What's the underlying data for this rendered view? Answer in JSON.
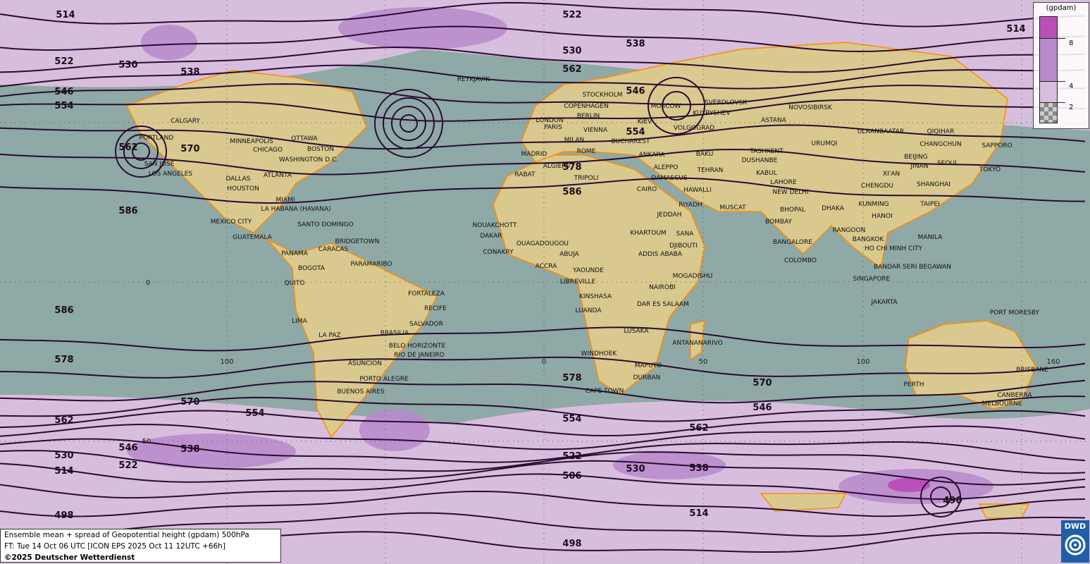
{
  "map": {
    "title": "Ensemble mean + spread of Geopotential height (gpdam) 500hPa",
    "forecast_line": "FT: Tue 14 Oct 06 UTC [ICON EPS 2025 Oct 11 12UTC +66h]",
    "copyright": "©2025 Deutscher Wetterdienst",
    "logo_text": "DWD",
    "colors": {
      "ocean": "#8fa9a6",
      "land": "#d9c98f",
      "spread_low": "#d8bedd",
      "spread_mid": "#b98acb",
      "spread_high": "#b950b8",
      "contour": "#2a0a33",
      "coast": "#ff8c00"
    },
    "legend": {
      "unit": "(gpdam)",
      "levels": [
        "8",
        "4",
        "2"
      ],
      "swatches": [
        "#b950b8",
        "#b98acb",
        "#d8bedd",
        "checker"
      ]
    },
    "contour_labels": [
      "514",
      "522",
      "530",
      "538",
      "514",
      "522",
      "530",
      "538",
      "546",
      "554",
      "562",
      "546",
      "554",
      "562",
      "570",
      "578",
      "586",
      "586",
      "586",
      "578",
      "578",
      "570",
      "570",
      "562",
      "554",
      "554",
      "546",
      "562",
      "546",
      "538",
      "530",
      "522",
      "514",
      "522",
      "506",
      "530",
      "538",
      "490",
      "498",
      "514",
      "498"
    ],
    "tick_labels": [
      "0",
      "100",
      "0",
      "50",
      "100",
      "160",
      "50"
    ],
    "cities": [
      "REYKJAVIK",
      "STOCKHOLM",
      "COPENHAGEN",
      "MOSCOW",
      "SVERDLOVSK",
      "NOVOSIBIRSK",
      "LONDON",
      "BERLIN",
      "KUYBYSHEV",
      "ASTANA",
      "KIEV",
      "PARIS",
      "VIENNA",
      "VOLGOGRAD",
      "ULAANBAATAR",
      "QIQIHAR",
      "MILAN",
      "BUCHAREST",
      "URUMQI",
      "CHANGCHUN",
      "SAPPORO",
      "MADRID",
      "ROME",
      "ANKARA",
      "BAKU",
      "TASHKENT",
      "DUSHANBE",
      "BEIJING",
      "JINAN",
      "SEOUL",
      "TOKYO",
      "ALGIERS",
      "TEHRAN",
      "ALEPPO",
      "KABUL",
      "XI'AN",
      "RABAT",
      "TRIPOLI",
      "DAMASCUS",
      "LAHORE",
      "CHENGDU",
      "SHANGHAI",
      "CAIRO",
      "HAWALLI",
      "NEW DELHI",
      "RIYADH",
      "MUSCAT",
      "KUNMING",
      "TAIPEI",
      "DHAKA",
      "BHOPAL",
      "HANOI",
      "JEDDAH",
      "BOMBAY",
      "NOUAKCHOTT",
      "KHARTOUM",
      "SANA",
      "RANGOON",
      "BANGKOK",
      "MANILA",
      "DAKAR",
      "CONAKRY",
      "OUAGADOUGOU",
      "ABUJA",
      "DJIBOUTI",
      "ADDIS ABABA",
      "BANGALORE",
      "HO CHI MINH CITY",
      "COLOMBO",
      "ACCRA",
      "YAOUNDE",
      "MOGADISHU",
      "BANDAR SERI BEGAWAN",
      "LIBREVILLE",
      "NAIROBI",
      "SINGAPORE",
      "KINSHASA",
      "DAR ES SALAAM",
      "JAKARTA",
      "PORT MORESBY",
      "LUANDA",
      "LUSAKA",
      "ANTANANARIVO",
      "WINDHOEK",
      "MAPUTO",
      "DURBAN",
      "CAPE TOWN",
      "PERTH",
      "BRISBANE",
      "CANBERRA",
      "MELBOURNE",
      "CALGARY",
      "PORTLAND",
      "MINNEAPOLIS",
      "OTTAWA",
      "CHICAGO",
      "BOSTON",
      "WASHINGTON D.C.",
      "SAN JOSE",
      "LOS ANGELES",
      "ATLANTA",
      "DALLAS",
      "HOUSTON",
      "MIAMI",
      "LA HABANA (HAVANA)",
      "MEXICO CITY",
      "SANTO DOMINGO",
      "GUATEMALA",
      "BRIDGETOWN",
      "PANAMA",
      "CARACAS",
      "PARAMARIBO",
      "BOGOTA",
      "QUITO",
      "FORTALEZA",
      "RECIFE",
      "LIMA",
      "LA PAZ",
      "SALVADOR",
      "BRASILIA",
      "BELO HORIZONTE",
      "RIO DE JANEIRO",
      "ASUNCION",
      "PORTO ALEGRE",
      "BUENOS AIRES"
    ]
  }
}
